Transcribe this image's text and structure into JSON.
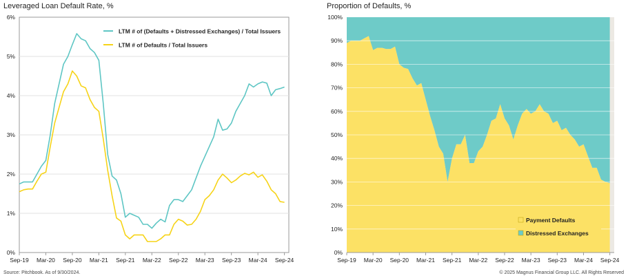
{
  "left_title": "Leveraged Loan Default Rate, %",
  "right_title": "Proportion of Defaults, %",
  "source_note": "Source: Pitchbook. As of 9/30/2024.",
  "copyright_note": "© 2025 Magnus Financial Group LLC. All Rights Reserved",
  "colors": {
    "teal": "#5ec6c4",
    "yellow": "#f6d317",
    "payment_fill": "#fce165",
    "exchange_fill": "#6ecbc8",
    "plot_bg": "#ece9e3"
  },
  "chart_data": [
    {
      "type": "line",
      "title": "Leveraged Loan Default Rate, %",
      "xlabel": "",
      "ylabel": "",
      "x_range": [
        0,
        61
      ],
      "ylim": [
        0,
        6
      ],
      "y_ticks": [
        {
          "v": 0,
          "label": "0%"
        },
        {
          "v": 1,
          "label": "1%"
        },
        {
          "v": 2,
          "label": "2%"
        },
        {
          "v": 3,
          "label": "3%"
        },
        {
          "v": 4,
          "label": "4%"
        },
        {
          "v": 5,
          "label": "5%"
        },
        {
          "v": 6,
          "label": "6%"
        }
      ],
      "x_ticks": [
        {
          "x": 0,
          "label": "Sep-19"
        },
        {
          "x": 6,
          "label": "Mar-20"
        },
        {
          "x": 12,
          "label": "Sep-20"
        },
        {
          "x": 18,
          "label": "Mar-21"
        },
        {
          "x": 24,
          "label": "Sep-21"
        },
        {
          "x": 30,
          "label": "Mar-22"
        },
        {
          "x": 36,
          "label": "Sep-22"
        },
        {
          "x": 42,
          "label": "Mar-23"
        },
        {
          "x": 48,
          "label": "Sep-23"
        },
        {
          "x": 54,
          "label": "Mar-24"
        },
        {
          "x": 60,
          "label": "Sep-24"
        }
      ],
      "grid": true,
      "legend_position": "top-right",
      "series": [
        {
          "name": "LTM # of (Defaults + Distressed Exchanges) / Total Issuers",
          "color": "#5ec6c4",
          "values": [
            1.75,
            1.8,
            1.8,
            1.8,
            2.0,
            2.2,
            2.35,
            3.0,
            3.8,
            4.3,
            4.8,
            5.0,
            5.3,
            5.58,
            5.45,
            5.4,
            5.2,
            5.1,
            4.9,
            3.8,
            2.5,
            1.95,
            1.85,
            1.5,
            0.9,
            1.0,
            0.95,
            0.9,
            0.72,
            0.72,
            0.62,
            0.75,
            0.85,
            0.78,
            1.2,
            1.35,
            1.35,
            1.3,
            1.45,
            1.6,
            1.9,
            2.2,
            2.45,
            2.7,
            2.95,
            3.4,
            3.12,
            3.15,
            3.3,
            3.6,
            3.8,
            4.0,
            4.3,
            4.22,
            4.3,
            4.35,
            4.32,
            4.0,
            4.15,
            4.18,
            4.22
          ]
        },
        {
          "name": "LTM # of Defaults / Total Issuers",
          "color": "#f6d317",
          "values": [
            1.55,
            1.6,
            1.62,
            1.62,
            1.82,
            2.0,
            2.05,
            2.7,
            3.3,
            3.7,
            4.1,
            4.3,
            4.63,
            4.5,
            4.25,
            4.2,
            3.9,
            3.7,
            3.6,
            2.9,
            2.1,
            1.45,
            0.88,
            0.8,
            0.45,
            0.35,
            0.45,
            0.45,
            0.45,
            0.28,
            0.28,
            0.28,
            0.35,
            0.45,
            0.45,
            0.72,
            0.85,
            0.8,
            0.7,
            0.72,
            0.85,
            1.05,
            1.35,
            1.45,
            1.6,
            1.85,
            2.0,
            1.9,
            1.78,
            1.85,
            1.95,
            2.02,
            1.98,
            2.05,
            1.92,
            1.98,
            1.82,
            1.6,
            1.5,
            1.3,
            1.28
          ]
        }
      ]
    },
    {
      "type": "area",
      "title": "Proportion of Defaults, %",
      "xlabel": "",
      "ylabel": "",
      "x_range": [
        0,
        61
      ],
      "ylim": [
        0,
        100
      ],
      "y_ticks": [
        {
          "v": 0,
          "label": "0%"
        },
        {
          "v": 10,
          "label": "10%"
        },
        {
          "v": 20,
          "label": "20%"
        },
        {
          "v": 30,
          "label": "30%"
        },
        {
          "v": 40,
          "label": "40%"
        },
        {
          "v": 50,
          "label": "50%"
        },
        {
          "v": 60,
          "label": "60%"
        },
        {
          "v": 70,
          "label": "70%"
        },
        {
          "v": 80,
          "label": "80%"
        },
        {
          "v": 90,
          "label": "90%"
        },
        {
          "v": 100,
          "label": "100%"
        }
      ],
      "x_ticks": [
        {
          "x": 0,
          "label": "Sep-19"
        },
        {
          "x": 6,
          "label": "Mar-20"
        },
        {
          "x": 12,
          "label": "Sep-20"
        },
        {
          "x": 18,
          "label": "Mar-21"
        },
        {
          "x": 24,
          "label": "Sep-21"
        },
        {
          "x": 30,
          "label": "Mar-22"
        },
        {
          "x": 36,
          "label": "Sep-22"
        },
        {
          "x": 42,
          "label": "Mar-23"
        },
        {
          "x": 48,
          "label": "Sep-23"
        },
        {
          "x": 54,
          "label": "Mar-24"
        },
        {
          "x": 60,
          "label": "Sep-24"
        }
      ],
      "grid": true,
      "stacked": true,
      "legend_position": "bottom-right",
      "series": [
        {
          "name": "Payment Defaults",
          "color": "#fce165",
          "values": [
            89,
            90,
            90,
            90,
            91,
            92,
            86,
            87,
            87,
            86.5,
            86.5,
            87.5,
            80,
            78.5,
            78,
            74,
            71,
            72,
            65,
            58,
            52,
            45,
            42,
            30,
            40,
            46,
            46,
            50,
            38,
            38,
            43,
            45,
            50,
            56,
            57,
            63,
            57,
            54,
            48,
            54,
            59,
            61,
            59,
            60,
            63,
            60,
            59,
            55,
            56,
            52,
            53,
            50,
            48,
            45,
            46,
            41,
            36,
            36,
            31,
            30,
            29.5
          ]
        },
        {
          "name": "Distressed Exchanges",
          "color": "#6ecbc8",
          "values": [
            11,
            10,
            10,
            10,
            9,
            8,
            14,
            13,
            13,
            13.5,
            13.5,
            12.5,
            20,
            21.5,
            22,
            26,
            29,
            28,
            35,
            42,
            48,
            55,
            58,
            70,
            60,
            54,
            54,
            50,
            62,
            62,
            57,
            55,
            50,
            44,
            43,
            37,
            43,
            46,
            52,
            46,
            41,
            39,
            41,
            40,
            37,
            40,
            41,
            45,
            44,
            48,
            47,
            50,
            52,
            55,
            54,
            59,
            64,
            64,
            69,
            70,
            70.5
          ]
        }
      ]
    }
  ]
}
